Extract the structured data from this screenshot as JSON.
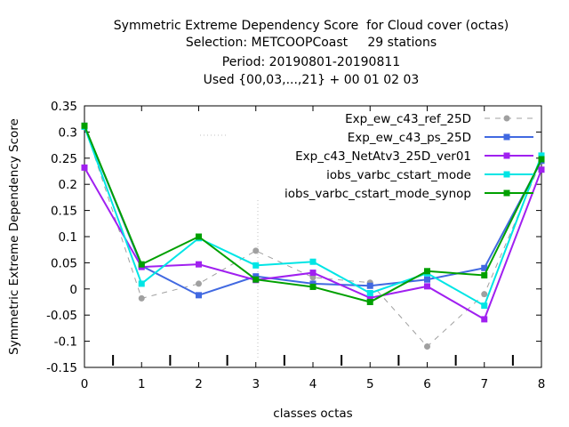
{
  "chart_data": {
    "type": "line",
    "title_lines": [
      "Symmetric Extreme Dependency Score  for Cloud cover (octas)",
      "Selection: METCOOPCoast     29 stations",
      "Period: 20190801-20190811",
      "Used {00,03,...,21} + 00 01 02 03"
    ],
    "xlabel": "classes octas",
    "ylabel": "Symmetric Extreme Dependency Score",
    "x": [
      0,
      1,
      2,
      3,
      4,
      5,
      6,
      7,
      8
    ],
    "xlim": [
      0,
      8
    ],
    "ylim": [
      -0.15,
      0.35
    ],
    "x_ticks": [
      "0",
      "1",
      "2",
      "3",
      "4",
      "5",
      "6",
      "7",
      "8"
    ],
    "y_ticks": [
      "-0.15",
      "-0.1",
      "-0.05",
      "0",
      "0.05",
      "0.1",
      "0.15",
      "0.2",
      "0.25",
      "0.3",
      "0.35"
    ],
    "legend_position": "top-right",
    "series": [
      {
        "name": "Exp_ew_c43_ref_25D",
        "color": "#a0a0a0",
        "dashed": true,
        "values": [
          0.312,
          -0.018,
          0.01,
          0.073,
          0.022,
          0.012,
          -0.11,
          -0.01,
          0.245
        ]
      },
      {
        "name": "Exp_ew_c43_ps_25D",
        "color": "#4169e1",
        "dashed": false,
        "values": [
          0.312,
          0.044,
          -0.012,
          0.024,
          0.01,
          0.006,
          0.018,
          0.04,
          0.245
        ]
      },
      {
        "name": "Exp_c43_NetAtv3_25D_ver01",
        "color": "#a020f0",
        "dashed": false,
        "values": [
          0.232,
          0.042,
          0.047,
          0.017,
          0.031,
          -0.017,
          0.005,
          -0.058,
          0.228
        ]
      },
      {
        "name": "iobs_varbc_cstart_mode",
        "color": "#00e5e5",
        "dashed": false,
        "values": [
          0.31,
          0.01,
          0.097,
          0.045,
          0.052,
          -0.008,
          0.03,
          -0.032,
          0.255
        ]
      },
      {
        "name": "iobs_varbc_cstart_mode_synop",
        "color": "#00a000",
        "dashed": false,
        "values": [
          0.312,
          0.047,
          0.1,
          0.018,
          0.004,
          -0.025,
          0.034,
          0.026,
          0.248
        ]
      }
    ]
  }
}
